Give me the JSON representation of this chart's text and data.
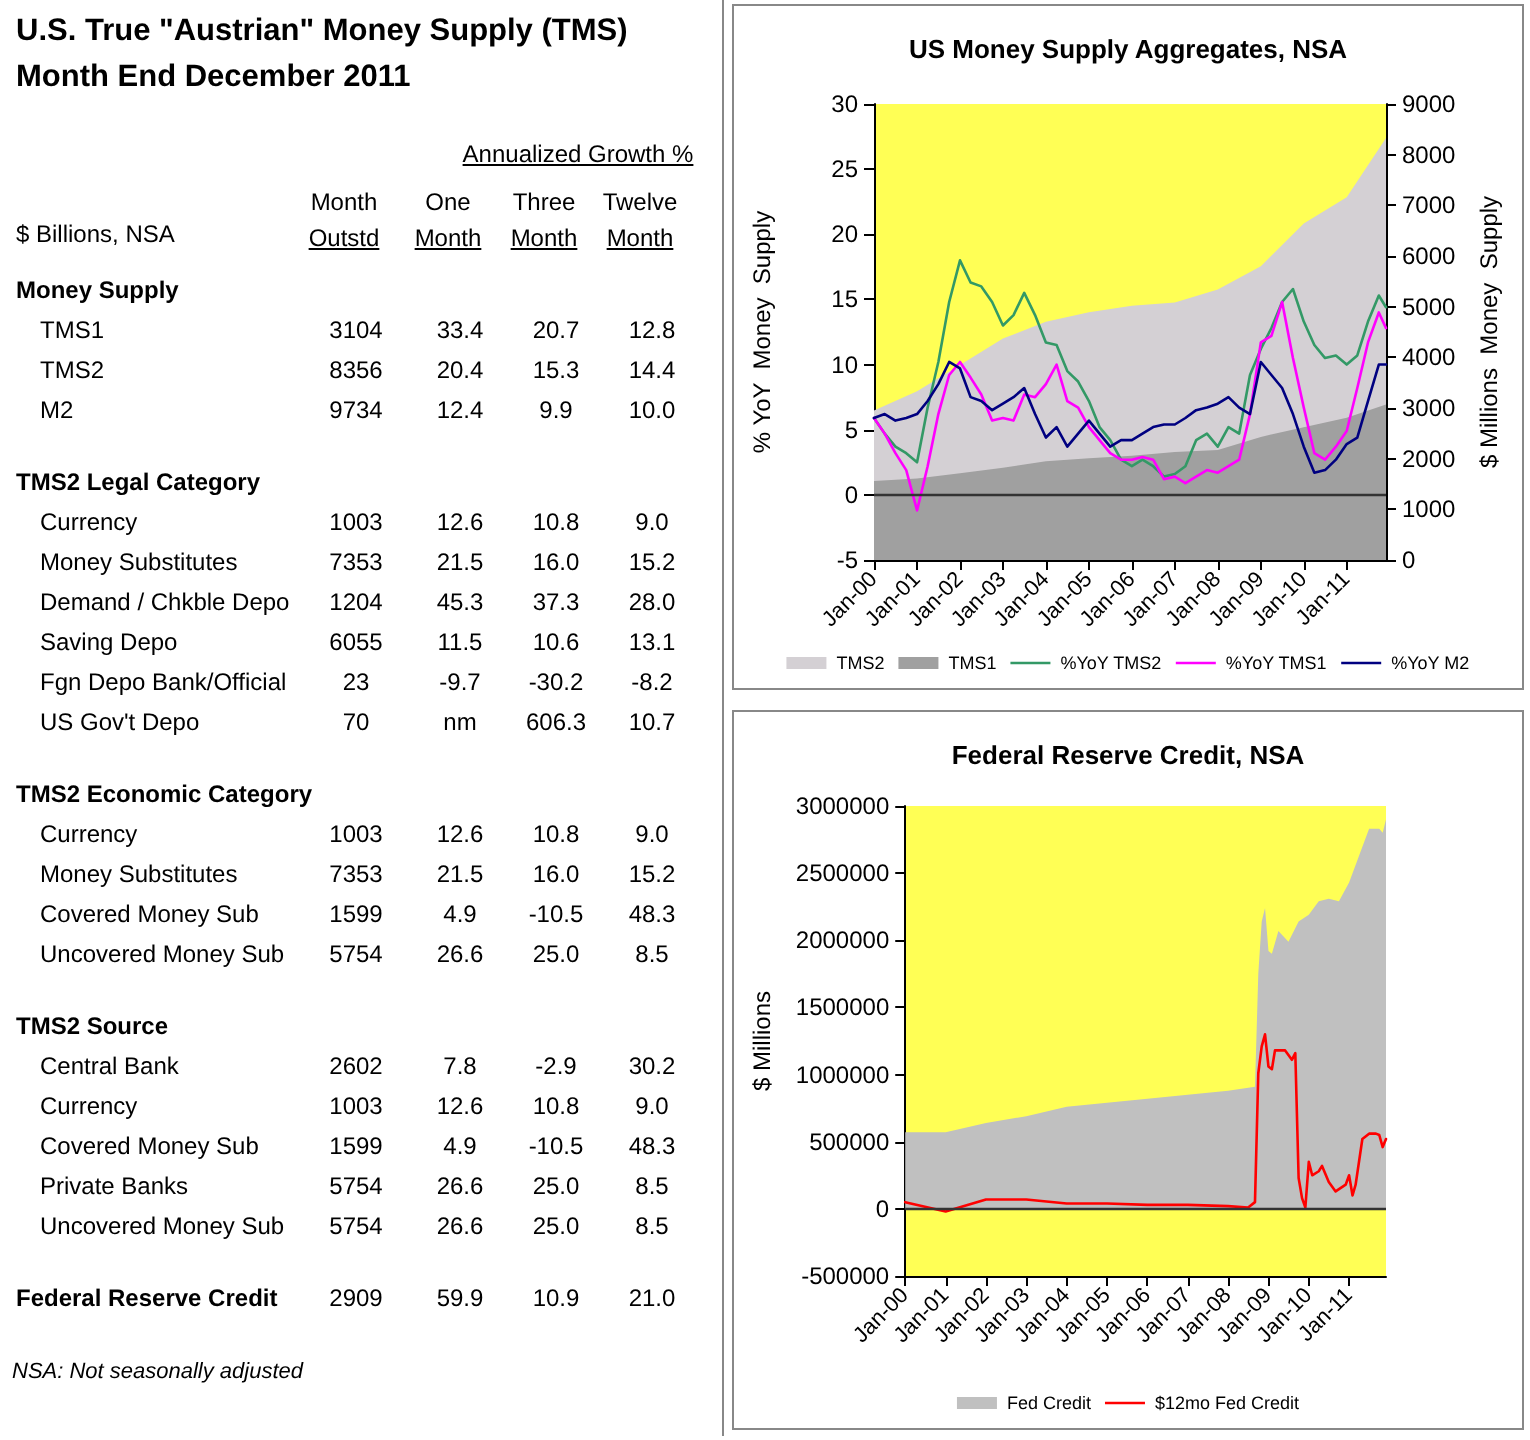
{
  "chart_data": [
    {
      "type": "other",
      "title": "U.S. True \"Austrian\" Money Supply (TMS)",
      "subtitle": "Month End December 2011",
      "annotations": [
        "$ Billions, NSA",
        "Annualized Growth %",
        "NSA: Not seasonally adjusted"
      ],
      "categories": [
        "Money Supply",
        "TMS1",
        "TMS2",
        "M2",
        "TMS2 Legal Category",
        "Currency",
        "Money Substitutes",
        "Demand / Chkble Depo",
        "Saving Depo",
        "Fgn Depo Bank/Official",
        "US Gov't Depo",
        "TMS2 Economic Category",
        "Currency",
        "Money Substitutes",
        "Covered Money Sub",
        "Uncovered Money Sub",
        "TMS2 Source",
        "Central Bank",
        "Currency",
        "Covered Money Sub",
        "Private Banks",
        "Uncovered Money Sub",
        "Federal Reserve Credit"
      ],
      "series": [
        {
          "name": "Month Outstd",
          "values": [
            null,
            3104,
            8356,
            9734,
            null,
            1003,
            7353,
            1204,
            6055,
            23,
            70,
            null,
            1003,
            7353,
            1599,
            5754,
            null,
            2602,
            1003,
            1599,
            5754,
            5754,
            2909
          ],
          "value_labels": [
            null,
            "3104",
            "8356",
            "9734",
            null,
            "1003",
            "7353",
            "1204",
            "6055",
            "23",
            "70",
            null,
            "1003",
            "7353",
            "1599",
            "5754",
            null,
            "2602",
            "1003",
            "1599",
            "5754",
            "5754",
            "2909"
          ]
        },
        {
          "name": "One Month",
          "values": [
            null,
            33.4,
            20.4,
            12.4,
            null,
            12.6,
            21.5,
            45.3,
            11.5,
            -9.7,
            null,
            null,
            12.6,
            21.5,
            4.9,
            26.6,
            null,
            7.8,
            12.6,
            4.9,
            26.6,
            26.6,
            59.9
          ],
          "value_labels": [
            null,
            "33.4",
            "20.4",
            "12.4",
            null,
            "12.6",
            "21.5",
            "45.3",
            "11.5",
            "-9.7",
            "nm",
            null,
            "12.6",
            "21.5",
            "4.9",
            "26.6",
            null,
            "7.8",
            "12.6",
            "4.9",
            "26.6",
            "26.6",
            "59.9"
          ]
        },
        {
          "name": "Three Month",
          "values": [
            null,
            20.7,
            15.3,
            9.9,
            null,
            10.8,
            16.0,
            37.3,
            10.6,
            -30.2,
            606.3,
            null,
            10.8,
            16.0,
            -10.5,
            25.0,
            null,
            -2.9,
            10.8,
            -10.5,
            25.0,
            25.0,
            10.9
          ],
          "value_labels": [
            null,
            "20.7",
            "15.3",
            "9.9",
            null,
            "10.8",
            "16.0",
            "37.3",
            "10.6",
            "-30.2",
            "606.3",
            null,
            "10.8",
            "16.0",
            "-10.5",
            "25.0",
            null,
            "-2.9",
            "10.8",
            "-10.5",
            "25.0",
            "25.0",
            "10.9"
          ]
        },
        {
          "name": "Twelve Month",
          "values": [
            null,
            12.8,
            14.4,
            10.0,
            null,
            9.0,
            15.2,
            28.0,
            13.1,
            -8.2,
            10.7,
            null,
            9.0,
            15.2,
            48.3,
            8.5,
            null,
            30.2,
            9.0,
            48.3,
            8.5,
            8.5,
            21.0
          ],
          "value_labels": [
            null,
            "12.8",
            "14.4",
            "10.0",
            null,
            "9.0",
            "15.2",
            "28.0",
            "13.1",
            "-8.2",
            "10.7",
            null,
            "9.0",
            "15.2",
            "48.3",
            "8.5",
            null,
            "30.2",
            "9.0",
            "48.3",
            "8.5",
            "8.5",
            "21.0"
          ]
        }
      ]
    },
    {
      "type": "line",
      "title": "US Money Supply Aggregates, NSA",
      "ylabel": "% YoY  Money  Supply",
      "y2label": "$ Millions  Money  Supply",
      "x": [
        "2000-01",
        "2000-04",
        "2000-07",
        "2000-10",
        "2001-01",
        "2001-04",
        "2001-07",
        "2001-10",
        "2002-01",
        "2002-04",
        "2002-07",
        "2002-10",
        "2003-01",
        "2003-04",
        "2003-07",
        "2003-10",
        "2004-01",
        "2004-04",
        "2004-07",
        "2004-10",
        "2005-01",
        "2005-04",
        "2005-07",
        "2005-10",
        "2006-01",
        "2006-04",
        "2006-07",
        "2006-10",
        "2007-01",
        "2007-04",
        "2007-07",
        "2007-10",
        "2008-01",
        "2008-04",
        "2008-07",
        "2008-10",
        "2009-01",
        "2009-04",
        "2009-07",
        "2009-10",
        "2010-01",
        "2010-04",
        "2010-07",
        "2010-10",
        "2011-01",
        "2011-04",
        "2011-07",
        "2011-10",
        "2011-12"
      ],
      "xlim": [
        "2000-01",
        "2011-12"
      ],
      "xticks": [
        {
          "value": "2000-01",
          "label": "Jan-00"
        },
        {
          "value": "2001-01",
          "label": "Jan-01"
        },
        {
          "value": "2002-01",
          "label": "Jan-02"
        },
        {
          "value": "2003-01",
          "label": "Jan-03"
        },
        {
          "value": "2004-01",
          "label": "Jan-04"
        },
        {
          "value": "2005-01",
          "label": "Jan-05"
        },
        {
          "value": "2006-01",
          "label": "Jan-06"
        },
        {
          "value": "2007-01",
          "label": "Jan-07"
        },
        {
          "value": "2008-01",
          "label": "Jan-08"
        },
        {
          "value": "2009-01",
          "label": "Jan-09"
        },
        {
          "value": "2010-01",
          "label": "Jan-10"
        },
        {
          "value": "2011-01",
          "label": "Jan-11"
        }
      ],
      "ylim": [
        -5,
        30
      ],
      "yticks": [
        -5,
        0,
        5,
        10,
        15,
        20,
        25,
        30
      ],
      "y2lim": [
        0,
        9000
      ],
      "y2ticks": [
        0,
        1000,
        2000,
        3000,
        4000,
        5000,
        6000,
        7000,
        8000,
        9000
      ],
      "ref_lines": [
        {
          "axis": "y",
          "value": 0,
          "color": "#333333"
        }
      ],
      "legend": "bottom",
      "grid": false,
      "series": [
        {
          "name": "TMS2",
          "type": "area",
          "axis": "y2",
          "color": "#d4d0d4",
          "x": [
            "2000-01",
            "2001-01",
            "2002-01",
            "2003-01",
            "2004-01",
            "2005-01",
            "2006-01",
            "2007-01",
            "2008-01",
            "2009-01",
            "2010-01",
            "2011-01",
            "2011-12"
          ],
          "values": [
            2950,
            3330,
            3850,
            4370,
            4700,
            4890,
            5020,
            5080,
            5340,
            5800,
            6640,
            7160,
            8330
          ]
        },
        {
          "name": "TMS1",
          "type": "area",
          "axis": "y2",
          "color": "#a0a0a0",
          "x": [
            "2000-01",
            "2001-01",
            "2002-01",
            "2003-01",
            "2004-01",
            "2005-01",
            "2006-01",
            "2007-01",
            "2008-01",
            "2009-01",
            "2010-01",
            "2011-01",
            "2011-12"
          ],
          "values": [
            1560,
            1610,
            1710,
            1820,
            1950,
            2010,
            2060,
            2130,
            2170,
            2430,
            2620,
            2810,
            3070
          ]
        },
        {
          "name": "%YoY TMS2",
          "color": "#339966",
          "values": [
            5.9,
            4.7,
            3.7,
            3.2,
            2.5,
            6.7,
            10.2,
            14.8,
            18.0,
            16.3,
            16.0,
            14.8,
            13.0,
            13.8,
            15.5,
            13.8,
            11.7,
            11.5,
            9.5,
            8.7,
            7.2,
            5.2,
            4.2,
            2.7,
            2.2,
            2.7,
            2.2,
            1.4,
            1.6,
            2.2,
            4.2,
            4.7,
            3.7,
            5.2,
            4.7,
            9.2,
            11.2,
            12.8,
            14.8,
            15.8,
            13.3,
            11.5,
            10.5,
            10.7,
            10.0,
            10.7,
            13.3,
            15.3,
            14.4
          ]
        },
        {
          "name": "%YoY TMS1",
          "color": "#ff00ff",
          "values": [
            5.9,
            4.7,
            3.2,
            1.9,
            -1.2,
            2.2,
            6.2,
            9.2,
            10.2,
            9.0,
            7.7,
            5.7,
            5.9,
            5.7,
            7.7,
            7.5,
            8.5,
            10.0,
            7.2,
            6.7,
            5.2,
            4.2,
            3.2,
            2.7,
            2.7,
            2.9,
            2.7,
            1.2,
            1.4,
            0.9,
            1.4,
            1.9,
            1.7,
            2.2,
            2.7,
            6.2,
            11.7,
            12.2,
            14.8,
            10.5,
            6.7,
            3.2,
            2.7,
            3.7,
            4.9,
            8.2,
            11.7,
            14.0,
            12.8
          ]
        },
        {
          "name": "%YoY M2",
          "color": "#000080",
          "values": [
            5.9,
            6.2,
            5.7,
            5.9,
            6.2,
            7.2,
            8.5,
            10.2,
            9.7,
            7.5,
            7.2,
            6.5,
            7.0,
            7.5,
            8.2,
            6.2,
            4.4,
            5.2,
            3.7,
            4.7,
            5.7,
            4.7,
            3.7,
            4.2,
            4.2,
            4.7,
            5.2,
            5.4,
            5.4,
            5.9,
            6.5,
            6.7,
            7.0,
            7.5,
            6.7,
            6.2,
            10.2,
            9.2,
            8.2,
            6.2,
            3.7,
            1.7,
            1.9,
            2.7,
            3.9,
            4.4,
            7.2,
            10.0,
            10.0
          ]
        }
      ]
    },
    {
      "type": "line",
      "title": "Federal Reserve Credit, NSA",
      "ylabel": "$ Millions",
      "xlim": [
        "2000-01",
        "2011-12"
      ],
      "xticks": [
        {
          "value": "2000-01",
          "label": "Jan-00"
        },
        {
          "value": "2001-01",
          "label": "Jan-01"
        },
        {
          "value": "2002-01",
          "label": "Jan-02"
        },
        {
          "value": "2003-01",
          "label": "Jan-03"
        },
        {
          "value": "2004-01",
          "label": "Jan-04"
        },
        {
          "value": "2005-01",
          "label": "Jan-05"
        },
        {
          "value": "2006-01",
          "label": "Jan-06"
        },
        {
          "value": "2007-01",
          "label": "Jan-07"
        },
        {
          "value": "2008-01",
          "label": "Jan-08"
        },
        {
          "value": "2009-01",
          "label": "Jan-09"
        },
        {
          "value": "2010-01",
          "label": "Jan-10"
        },
        {
          "value": "2011-01",
          "label": "Jan-11"
        }
      ],
      "ylim": [
        -500000,
        3000000
      ],
      "yticks": [
        -500000,
        0,
        500000,
        1000000,
        1500000,
        2000000,
        2500000,
        3000000
      ],
      "ref_lines": [
        {
          "axis": "y",
          "value": 0,
          "color": "#333333"
        }
      ],
      "legend": "bottom",
      "grid": false,
      "series": [
        {
          "name": "Fed Credit",
          "type": "area",
          "color": "#c0c0c0",
          "x": [
            "2000-01",
            "2001-01",
            "2002-01",
            "2003-01",
            "2004-01",
            "2005-01",
            "2006-01",
            "2007-01",
            "2008-01",
            "2008-09",
            "2008-10",
            "2008-11",
            "2008-12",
            "2009-01",
            "2009-02",
            "2009-04",
            "2009-07",
            "2009-10",
            "2010-01",
            "2010-04",
            "2010-07",
            "2010-10",
            "2011-01",
            "2011-04",
            "2011-07",
            "2011-10",
            "2011-11",
            "2011-12"
          ],
          "values": [
            570000,
            570000,
            640000,
            690000,
            760000,
            790000,
            820000,
            850000,
            880000,
            910000,
            1750000,
            2140000,
            2240000,
            1920000,
            1900000,
            2070000,
            1990000,
            2140000,
            2190000,
            2290000,
            2310000,
            2290000,
            2430000,
            2630000,
            2830000,
            2830000,
            2800000,
            2900000
          ]
        },
        {
          "name": "$12mo Fed Credit",
          "color": "#ff0000",
          "x": [
            "2000-01",
            "2001-01",
            "2002-01",
            "2003-01",
            "2004-01",
            "2005-01",
            "2006-01",
            "2007-01",
            "2008-01",
            "2008-07",
            "2008-09",
            "2008-10",
            "2008-11",
            "2008-12",
            "2009-01",
            "2009-02",
            "2009-03",
            "2009-06",
            "2009-08",
            "2009-09",
            "2009-10",
            "2009-11",
            "2009-12",
            "2010-01",
            "2010-02",
            "2010-04",
            "2010-05",
            "2010-07",
            "2010-09",
            "2010-12",
            "2011-01",
            "2011-02",
            "2011-03",
            "2011-05",
            "2011-07",
            "2011-09",
            "2011-10",
            "2011-11",
            "2011-12"
          ],
          "values": [
            50000,
            -20000,
            70000,
            70000,
            40000,
            40000,
            30000,
            30000,
            20000,
            10000,
            50000,
            1010000,
            1210000,
            1300000,
            1060000,
            1040000,
            1180000,
            1180000,
            1110000,
            1160000,
            230000,
            80000,
            10000,
            350000,
            250000,
            280000,
            320000,
            200000,
            130000,
            180000,
            250000,
            100000,
            180000,
            520000,
            560000,
            560000,
            550000,
            460000,
            520000
          ]
        }
      ]
    }
  ]
}
